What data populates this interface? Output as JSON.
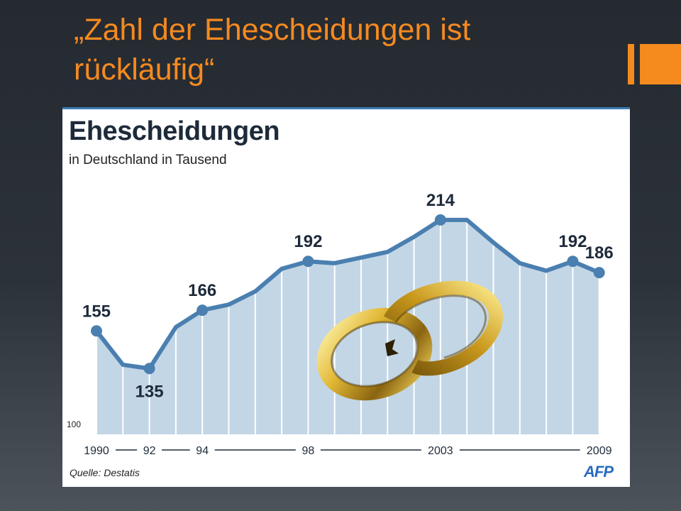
{
  "slide": {
    "title": "„Zahl der Ehescheidungen ist\nrückläufig“",
    "accent_color": "#f58a1f"
  },
  "chart_data": {
    "type": "area",
    "title": "Ehescheidungen",
    "subtitle": "in Deutschland in Tausend",
    "source": "Quelle: Destatis",
    "logo": "AFP",
    "baseline_label": "100",
    "x_tick_labels": [
      {
        "label": "1990",
        "year": 1990
      },
      {
        "label": "92",
        "year": 1992
      },
      {
        "label": "94",
        "year": 1994
      },
      {
        "label": "98",
        "year": 1998
      },
      {
        "label": "2003",
        "year": 2003
      },
      {
        "label": "2009",
        "year": 2009
      }
    ],
    "ylim": [
      100,
      225
    ],
    "line_color": "#4a7fb0",
    "fill_color": "#c3d6e6",
    "series": [
      {
        "x": [
          1990,
          1991,
          1992,
          1993,
          1994,
          1995,
          1996,
          1997,
          1998,
          1999,
          2000,
          2001,
          2002,
          2003,
          2004,
          2005,
          2006,
          2007,
          2008,
          2009
        ],
        "values": [
          155,
          137,
          135,
          157,
          166,
          169,
          176,
          188,
          192,
          191,
          194,
          197,
          205,
          214,
          214,
          202,
          191,
          187,
          192,
          186
        ]
      }
    ],
    "data_labels": [
      {
        "year": 1990,
        "value": 155,
        "label": "155",
        "position": "above"
      },
      {
        "year": 1992,
        "value": 135,
        "label": "135",
        "position": "below"
      },
      {
        "year": 1994,
        "value": 166,
        "label": "166",
        "position": "above"
      },
      {
        "year": 1998,
        "value": 192,
        "label": "192",
        "position": "above"
      },
      {
        "year": 2003,
        "value": 214,
        "label": "214",
        "position": "above"
      },
      {
        "year": 2008,
        "value": 192,
        "label": "192",
        "position": "above"
      },
      {
        "year": 2009,
        "value": 186,
        "label": "186",
        "position": "above"
      }
    ]
  },
  "illustration": {
    "name": "broken-wedding-rings-icon",
    "gold": "#d4a92a"
  }
}
